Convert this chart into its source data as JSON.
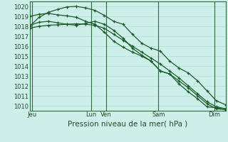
{
  "background_color": "#cdeee9",
  "grid_color": "#b0ddd4",
  "line_color": "#1a5c2a",
  "title": "Pression niveau de la mer( hPa )",
  "ylim": [
    1009.5,
    1020.5
  ],
  "yticks": [
    1010,
    1011,
    1012,
    1013,
    1014,
    1015,
    1016,
    1017,
    1018,
    1019,
    1020
  ],
  "xlim": [
    0,
    17.5
  ],
  "xtick_labels": [
    "Jeu",
    "Lun",
    "Ven",
    "Sam",
    "Dim"
  ],
  "xtick_positions": [
    0.2,
    5.5,
    6.8,
    11.5,
    16.5
  ],
  "xvlines": [
    0.2,
    5.5,
    6.8,
    11.5,
    16.5
  ],
  "series": [
    [
      1017.8,
      1018.0,
      1018.1,
      1018.15,
      1018.2,
      1018.25,
      1018.2,
      1018.1,
      1017.8,
      1017.2,
      1016.6,
      1016.0,
      1015.4,
      1014.8,
      1014.2,
      1013.5,
      1012.8,
      1012.0,
      1011.2,
      1010.4,
      1009.9,
      1009.7
    ],
    [
      1019.0,
      1019.2,
      1019.3,
      1019.15,
      1019.05,
      1018.9,
      1018.5,
      1018.2,
      1017.4,
      1016.5,
      1015.9,
      1015.4,
      1015.0,
      1014.5,
      1013.5,
      1013.2,
      1012.5,
      1011.8,
      1011.0,
      1010.2,
      1009.7,
      1009.6
    ],
    [
      1018.0,
      1018.9,
      1019.4,
      1019.7,
      1019.95,
      1020.0,
      1019.85,
      1019.6,
      1019.1,
      1018.5,
      1018.2,
      1017.2,
      1016.3,
      1015.8,
      1015.5,
      1014.5,
      1013.8,
      1013.3,
      1012.5,
      1011.5,
      1010.5,
      1010.1
    ],
    [
      1018.1,
      1018.4,
      1018.5,
      1018.35,
      1018.2,
      1018.1,
      1018.3,
      1018.5,
      1018.2,
      1017.6,
      1016.8,
      1015.8,
      1015.1,
      1014.5,
      1013.5,
      1013.2,
      1012.2,
      1011.4,
      1010.7,
      1009.9,
      1009.8,
      1009.7
    ]
  ],
  "n_points": 22,
  "tick_fontsize": 6.0,
  "xlabel_fontsize": 7.5
}
